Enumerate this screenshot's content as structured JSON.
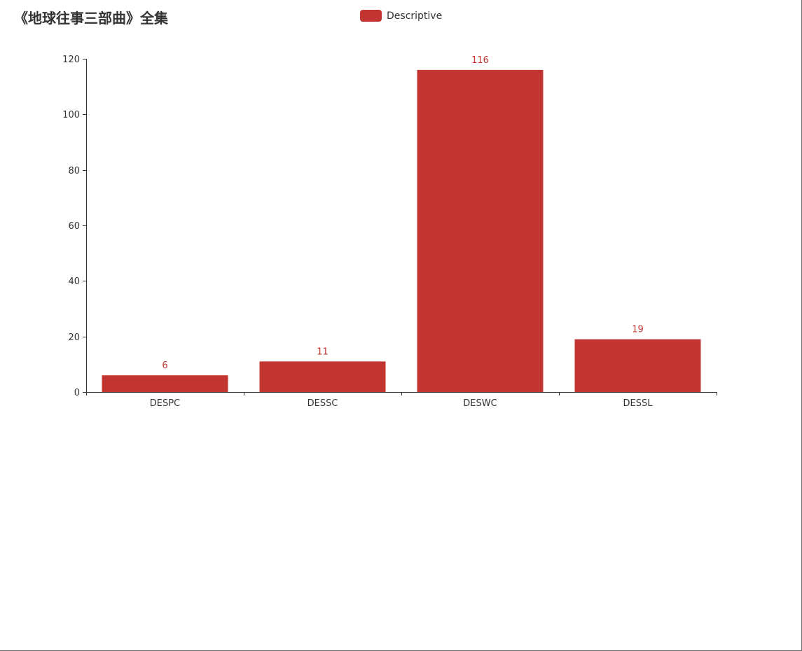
{
  "chart_data": {
    "type": "bar",
    "title": "《地球往事三部曲》全集",
    "categories": [
      "DESPC",
      "DESSC",
      "DESWC",
      "DESSL"
    ],
    "series": [
      {
        "name": "Descriptive",
        "values": [
          6,
          11,
          116,
          19
        ]
      }
    ],
    "xlabel": "",
    "ylabel": "",
    "ylim": [
      0,
      120
    ],
    "yticks": [
      0,
      20,
      40,
      60,
      80,
      100,
      120
    ],
    "grid": false,
    "legend_position": "top-center",
    "show_data_labels": true
  },
  "colors": {
    "series": "#c23531",
    "axis": "#333333",
    "text": "#333333"
  }
}
